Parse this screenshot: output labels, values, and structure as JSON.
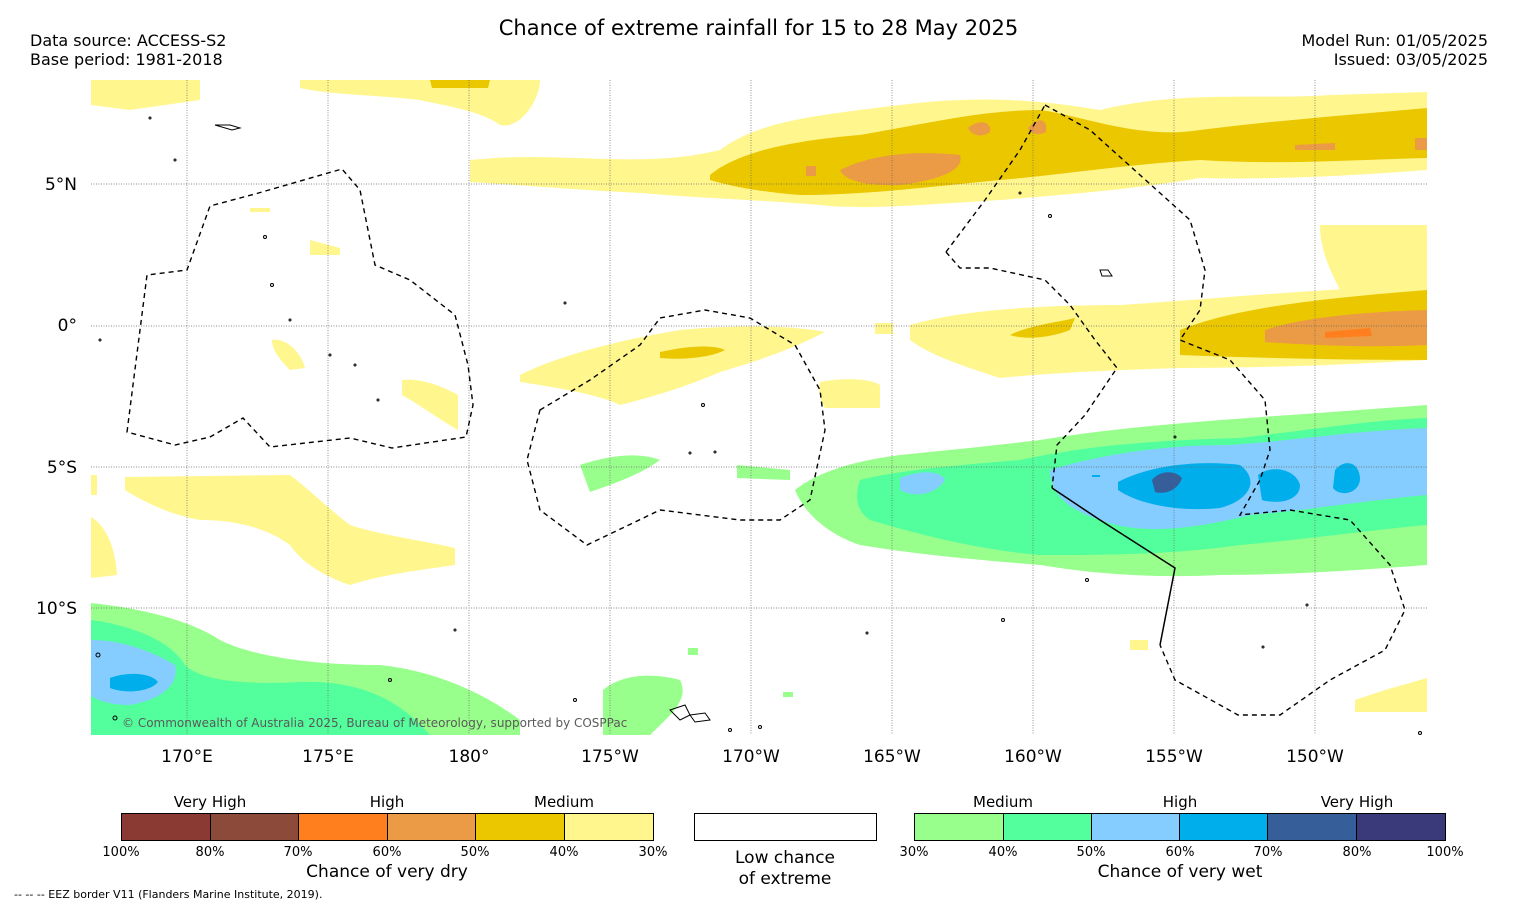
{
  "header": {
    "title": "Chance of extreme rainfall for 15 to 28 May 2025",
    "data_source": "Data source: ACCESS-S2",
    "base_period": "Base period: 1981-2018",
    "model_run": "Model Run: 01/05/2025",
    "issued": "Issued: 03/05/2025"
  },
  "map": {
    "lat_labels": [
      "5°N",
      "0°",
      "5°S",
      "10°S"
    ],
    "lon_labels": [
      "170°E",
      "175°E",
      "180°",
      "175°W",
      "170°W",
      "165°W",
      "160°W",
      "155°W",
      "150°W"
    ],
    "credit": "© Commonwealth of Australia 2025, Bureau of Meteorology, supported by COSPPac"
  },
  "legend_dry": {
    "title": "Chance of very dry",
    "groups": [
      "Very High",
      "High",
      "Medium"
    ],
    "ticks": [
      "100%",
      "80%",
      "70%",
      "60%",
      "50%",
      "40%",
      "30%"
    ],
    "colors": [
      "#8b3a33",
      "#8b4a3a",
      "#ff7f1f",
      "#eb9b45",
      "#ebc700",
      "#fff68e"
    ]
  },
  "legend_low": {
    "title_line1": "Low chance",
    "title_line2": "of extreme"
  },
  "legend_wet": {
    "title": "Chance of very wet",
    "groups": [
      "Medium",
      "High",
      "Very High"
    ],
    "ticks": [
      "30%",
      "40%",
      "50%",
      "60%",
      "70%",
      "80%",
      "100%"
    ],
    "colors": [
      "#99ff8c",
      "#52ff9c",
      "#85ccff",
      "#00aeeb",
      "#365f99",
      "#3a3a7a"
    ]
  },
  "footnote": "-- -- -- EEZ border V11 (Flanders Marine Institute, 2019)."
}
